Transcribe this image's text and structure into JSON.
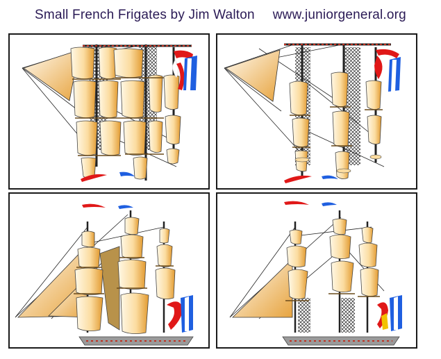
{
  "header": {
    "title": "Small French Frigates by Jim Walton",
    "url": "www.juniorgeneral.org"
  },
  "sprites": [
    {
      "id": "frigate-stern-view-full-sail",
      "panel": "top-left"
    },
    {
      "id": "frigate-stern-view-reduced-sail",
      "panel": "top-right"
    },
    {
      "id": "frigate-broadside-full-sail",
      "panel": "bottom-left"
    },
    {
      "id": "frigate-broadside-reduced-sail",
      "panel": "bottom-right"
    }
  ],
  "colors": {
    "sail_light": "#fff6dc",
    "sail_dark": "#e4a23a",
    "hull": "#9a9a9a",
    "flag_blue": "#1f5fe0",
    "flag_red": "#e01818",
    "flag_white": "#ffffff",
    "title": "#2a1a55"
  }
}
